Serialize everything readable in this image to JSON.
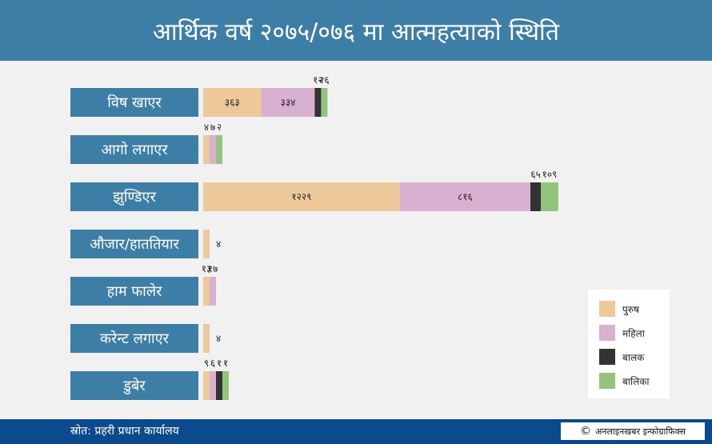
{
  "title": "आर्थिक वर्ष २०७५/०७६ मा आत्महत्याको स्थिति",
  "source": "स्रोत: प्रहरी प्रधान कार्यालय",
  "credit": "अनलाइनखबर इन्फोग्राफिक्स",
  "credit_symbol": "©",
  "colors": {
    "male": "#ecc89b",
    "female": "#d9b1d0",
    "boy": "#333333",
    "girl": "#93c47d"
  },
  "chart_data": {
    "type": "bar",
    "orientation": "horizontal",
    "stacked": true,
    "categories": [
      "विष खाएर",
      "आगो लगाएर",
      "झुण्डिएर",
      "औजार/हाततियार",
      "हाम फालेर",
      "करेन्ट लगाएर",
      "डुबेर"
    ],
    "series": [
      {
        "name": "पुरुष",
        "color": "#ecc89b",
        "values": [
          363,
          4,
          1229,
          4,
          13,
          4,
          9
        ]
      },
      {
        "name": "महिला",
        "color": "#d9b1d0",
        "values": [
          334,
          7,
          816,
          0,
          17,
          0,
          6
        ]
      },
      {
        "name": "बालक",
        "color": "#333333",
        "values": [
          12,
          0,
          65,
          0,
          0,
          0,
          1
        ]
      },
      {
        "name": "बालिका",
        "color": "#93c47d",
        "values": [
          26,
          2,
          109,
          0,
          0,
          0,
          1
        ]
      }
    ],
    "value_labels": [
      [
        "३६३",
        "३३४",
        "१२",
        "२६"
      ],
      [
        "४",
        "७",
        "",
        "२"
      ],
      [
        "१२२९",
        "८१६",
        "६५",
        "१०९"
      ],
      [
        "४",
        "",
        "",
        ""
      ],
      [
        "१३",
        "१७",
        "",
        ""
      ],
      [
        "४",
        "",
        "",
        ""
      ],
      [
        "९",
        "६",
        "१",
        "१"
      ]
    ],
    "legend_position": "bottom-right",
    "grid": false
  }
}
